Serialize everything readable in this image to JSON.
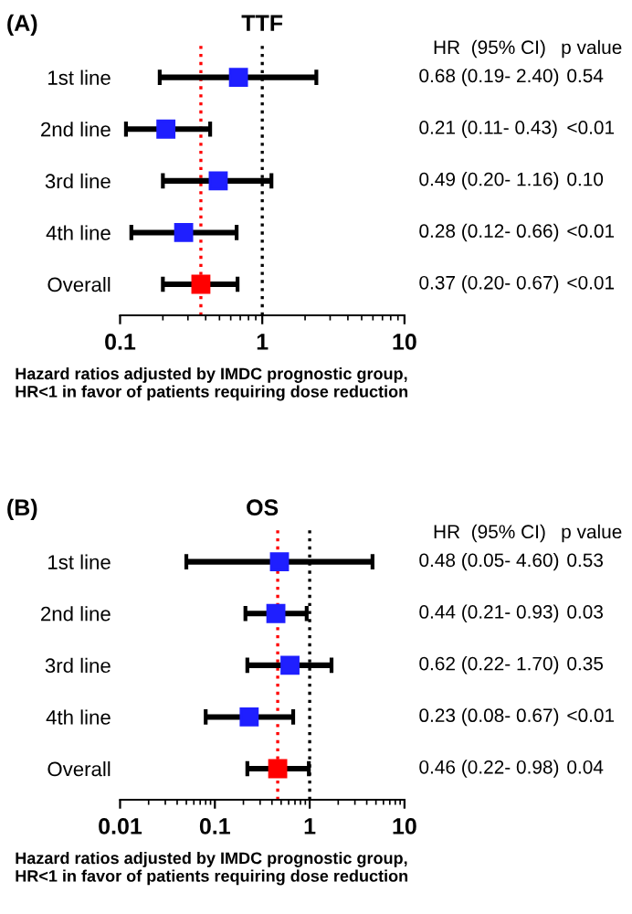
{
  "chart_data": [
    {
      "type": "scatter",
      "subtitle": "(A)",
      "title": "TTF",
      "orientation": "horizontal",
      "log": "x",
      "marker": "square",
      "categories": [
        "1st line",
        "2nd line",
        "3rd line",
        "4th line",
        "Overall"
      ],
      "values": [
        0.68,
        0.21,
        0.49,
        0.28,
        0.37
      ],
      "errors": [
        [
          0.19,
          2.4
        ],
        [
          0.11,
          0.43
        ],
        [
          0.2,
          1.16
        ],
        [
          0.12,
          0.66
        ],
        [
          0.2,
          0.67
        ]
      ],
      "colors": [
        "#1f1fff",
        "#1f1fff",
        "#1f1fff",
        "#1f1fff",
        "#ff0000"
      ],
      "value_labels": [
        "0.68 (0.19- 2.40)",
        "0.21 (0.11- 0.43)",
        "0.49 (0.20- 1.16)",
        "0.28 (0.12- 0.66)",
        "0.37 (0.20- 0.67)"
      ],
      "xlim": [
        0.1,
        10
      ],
      "xticks": [
        0.1,
        1,
        10
      ],
      "ref_lines": [
        {
          "axis": "x",
          "value": 0.37,
          "color": "#ff0000",
          "line_style": "dotted"
        },
        {
          "axis": "x",
          "value": 1,
          "color": "#000000",
          "line_style": "dotted"
        }
      ],
      "annotations": [
        "HR  (95% CI)",
        "p value",
        "0.54",
        "<0.01",
        "0.10",
        "<0.01",
        "<0.01",
        "Hazard ratios adjusted by IMDC prognostic group,\nHR<1 in favor of patients requiring dose reduction"
      ]
    },
    {
      "type": "scatter",
      "subtitle": "(B)",
      "title": "OS",
      "orientation": "horizontal",
      "log": "x",
      "marker": "square",
      "categories": [
        "1st line",
        "2nd line",
        "3rd line",
        "4th line",
        "Overall"
      ],
      "values": [
        0.48,
        0.44,
        0.62,
        0.23,
        0.46
      ],
      "errors": [
        [
          0.05,
          4.6
        ],
        [
          0.21,
          0.93
        ],
        [
          0.22,
          1.7
        ],
        [
          0.08,
          0.67
        ],
        [
          0.22,
          0.98
        ]
      ],
      "colors": [
        "#1f1fff",
        "#1f1fff",
        "#1f1fff",
        "#1f1fff",
        "#ff0000"
      ],
      "value_labels": [
        "0.48 (0.05- 4.60)",
        "0.44 (0.21- 0.93)",
        "0.62 (0.22- 1.70)",
        "0.23 (0.08- 0.67)",
        "0.46 (0.22- 0.98)"
      ],
      "xlim": [
        0.01,
        10
      ],
      "xticks": [
        0.01,
        0.1,
        1,
        10
      ],
      "ref_lines": [
        {
          "axis": "x",
          "value": 0.46,
          "color": "#ff0000",
          "line_style": "dotted"
        },
        {
          "axis": "x",
          "value": 1,
          "color": "#000000",
          "line_style": "dotted"
        }
      ],
      "annotations": [
        "HR  (95% CI)",
        "p value",
        "0.53",
        "0.03",
        "0.35",
        "<0.01",
        "0.04",
        "Hazard ratios adjusted by IMDC prognostic group,\nHR<1 in favor of patients requiring dose reduction"
      ]
    }
  ]
}
